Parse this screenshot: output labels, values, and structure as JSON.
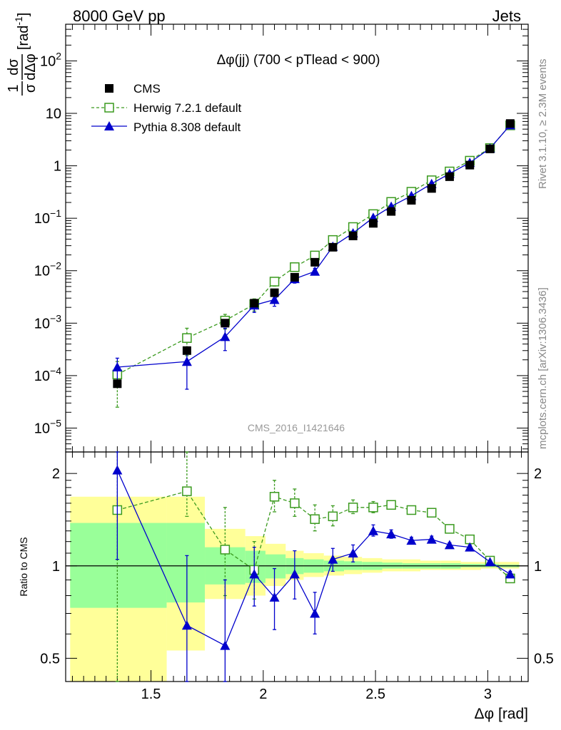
{
  "header": {
    "left": "8000 GeV pp",
    "right": "Jets"
  },
  "side_labels": {
    "rivet": "Rivet 3.1.10, ≥ 2.3M events",
    "mcplots": "mcplots.cern.ch [arXiv:1306.3436]"
  },
  "watermark": "CMS_2016_I1421646",
  "colors": {
    "cms": "#000000",
    "herwig": "#3a9a1e",
    "pythia": "#0000cc",
    "band_yellow": "#ffff99",
    "band_green": "#99ff99"
  },
  "chart_data": [
    {
      "type": "scatter",
      "panel": "main",
      "title": "Δφ(jj) (700 < pTlead <  900)",
      "ylabel": "1/σ dσ/dΔφ [rad⁻¹]",
      "ylabel_parts": {
        "num": "1",
        "den": "σ",
        "dnum": "dσ",
        "dden": "dΔφ",
        "unit": "[rad",
        "unit_sup": "-1",
        "unit_end": "]"
      },
      "yscale": "log",
      "ylim": [
        3.5e-06,
        500
      ],
      "xlim": [
        1.12,
        3.18
      ],
      "yticks": [
        {
          "v": 1e-05,
          "base": "10",
          "exp": "−5"
        },
        {
          "v": 0.0001,
          "base": "10",
          "exp": "−4"
        },
        {
          "v": 0.001,
          "base": "10",
          "exp": "−3"
        },
        {
          "v": 0.01,
          "base": "10",
          "exp": "−2"
        },
        {
          "v": 0.1,
          "base": "10",
          "exp": "−1"
        },
        {
          "v": 1,
          "base": "1",
          "exp": ""
        },
        {
          "v": 10,
          "base": "10",
          "exp": ""
        },
        {
          "v": 100,
          "base": "10",
          "exp": "2"
        }
      ],
      "legend_position": "top-left",
      "series": [
        {
          "name": "CMS",
          "marker": "square-filled",
          "x": [
            1.35,
            1.66,
            1.83,
            1.96,
            2.05,
            2.14,
            2.23,
            2.31,
            2.4,
            2.49,
            2.57,
            2.66,
            2.75,
            2.83,
            2.92,
            3.01,
            3.1
          ],
          "y": [
            7e-05,
            0.0003,
            0.001,
            0.0024,
            0.0038,
            0.0075,
            0.0145,
            0.028,
            0.046,
            0.08,
            0.135,
            0.22,
            0.37,
            0.62,
            1.03,
            2.1,
            6.4
          ],
          "yerr": [
            5e-06,
            1e-05,
            3e-05,
            7e-05,
            0.0001,
            0.0002,
            0.0003,
            0.0006,
            0.0009,
            0.0015,
            0.0025,
            0.004,
            0.006,
            0.01,
            0.015,
            0.03,
            0.08
          ]
        },
        {
          "name": "Herwig 7.2.1 default",
          "marker": "square-open",
          "line": "dashed",
          "x": [
            1.35,
            1.66,
            1.83,
            1.96,
            2.05,
            2.14,
            2.23,
            2.31,
            2.4,
            2.49,
            2.57,
            2.66,
            2.75,
            2.83,
            2.92,
            3.01,
            3.1
          ],
          "y": [
            0.000105,
            0.00052,
            0.00112,
            0.0023,
            0.0062,
            0.0117,
            0.0195,
            0.0385,
            0.068,
            0.12,
            0.205,
            0.32,
            0.53,
            0.78,
            1.25,
            2.18,
            5.9
          ],
          "yerr": [
            8e-05,
            0.00028,
            0.00035,
            0.0006,
            0.0011,
            0.0016,
            0.0024,
            0.004,
            0.006,
            0.009,
            0.013,
            0.018,
            0.025,
            0.035,
            0.05,
            0.08,
            0.15
          ]
        },
        {
          "name": "Pythia 8.308 default",
          "marker": "triangle-filled",
          "line": "solid",
          "x": [
            1.35,
            1.66,
            1.83,
            1.96,
            2.05,
            2.14,
            2.23,
            2.31,
            2.4,
            2.49,
            2.57,
            2.66,
            2.75,
            2.83,
            2.92,
            3.01,
            3.1
          ],
          "y": [
            0.000145,
            0.000185,
            0.00055,
            0.0022,
            0.0028,
            0.007,
            0.0097,
            0.029,
            0.052,
            0.103,
            0.168,
            0.268,
            0.455,
            0.71,
            1.15,
            2.15,
            6.0
          ],
          "yerr": [
            7e-05,
            0.00013,
            0.00025,
            0.0006,
            0.0007,
            0.0012,
            0.0014,
            0.003,
            0.004,
            0.006,
            0.008,
            0.011,
            0.016,
            0.022,
            0.035,
            0.06,
            0.12
          ]
        }
      ]
    },
    {
      "type": "scatter",
      "panel": "ratio",
      "ylabel": "Ratio to CMS",
      "xlabel": "Δφ [rad]",
      "yscale": "log",
      "ylim": [
        0.42,
        2.35
      ],
      "xlim": [
        1.12,
        3.18
      ],
      "xticks": [
        1.5,
        2,
        2.5,
        3
      ],
      "xtick_labels": [
        "1.5",
        "2",
        "2.5",
        "3"
      ],
      "yticks": [
        0.5,
        1,
        2
      ],
      "ytick_labels": [
        "0.5",
        "1",
        "2"
      ],
      "reference_line": 1,
      "bands": {
        "edges": [
          1.14,
          1.57,
          1.74,
          1.92,
          2.01,
          2.1,
          2.18,
          2.27,
          2.36,
          2.44,
          2.53,
          2.62,
          2.7,
          2.79,
          2.88,
          2.97,
          3.05,
          3.14
        ],
        "yellow_low": [
          0.38,
          0.53,
          0.78,
          0.8,
          0.86,
          0.9,
          0.92,
          0.93,
          0.94,
          0.95,
          0.96,
          0.96,
          0.97,
          0.97,
          0.97,
          0.98,
          0.98
        ],
        "yellow_high": [
          1.68,
          1.68,
          1.32,
          1.25,
          1.18,
          1.12,
          1.1,
          1.08,
          1.07,
          1.06,
          1.05,
          1.05,
          1.04,
          1.04,
          1.03,
          1.03,
          1.03
        ],
        "green_low": [
          0.73,
          0.76,
          0.87,
          0.88,
          0.91,
          0.94,
          0.95,
          0.96,
          0.97,
          0.97,
          0.98,
          0.98,
          0.98,
          0.98,
          0.99,
          0.99,
          0.99
        ],
        "green_high": [
          1.38,
          1.38,
          1.15,
          1.12,
          1.09,
          1.06,
          1.05,
          1.04,
          1.035,
          1.03,
          1.025,
          1.02,
          1.02,
          1.02,
          1.015,
          1.015,
          1.01
        ]
      },
      "series": [
        {
          "name": "Herwig 7.2.1 default",
          "marker": "square-open",
          "line": "dashed",
          "x": [
            1.35,
            1.66,
            1.83,
            1.96,
            2.05,
            2.14,
            2.23,
            2.31,
            2.4,
            2.49,
            2.57,
            2.66,
            2.75,
            2.83,
            2.92,
            3.01,
            3.1
          ],
          "y": [
            1.52,
            1.75,
            1.13,
            0.97,
            1.68,
            1.6,
            1.42,
            1.45,
            1.55,
            1.55,
            1.58,
            1.52,
            1.49,
            1.32,
            1.22,
            1.04,
            0.91
          ],
          "ylo": [
            0.38,
            1.45,
            0.8,
            0.78,
            1.5,
            1.45,
            1.3,
            1.35,
            1.48,
            1.49,
            1.54,
            1.49,
            1.46,
            1.3,
            1.2,
            1.03,
            0.9
          ],
          "yhi": [
            2.35,
            2.35,
            1.55,
            1.2,
            1.9,
            1.78,
            1.58,
            1.57,
            1.64,
            1.62,
            1.63,
            1.56,
            1.52,
            1.35,
            1.25,
            1.05,
            0.92
          ]
        },
        {
          "name": "Pythia 8.308 default",
          "marker": "triangle-filled",
          "line": "solid",
          "x": [
            1.35,
            1.66,
            1.83,
            1.96,
            2.05,
            2.14,
            2.23,
            2.31,
            2.4,
            2.49,
            2.57,
            2.66,
            2.75,
            2.83,
            2.92,
            3.01,
            3.1
          ],
          "y": [
            2.05,
            0.64,
            0.55,
            0.94,
            0.79,
            0.94,
            0.7,
            1.05,
            1.1,
            1.3,
            1.27,
            1.21,
            1.22,
            1.17,
            1.15,
            1.03,
            0.94
          ],
          "ylo": [
            1.05,
            0.42,
            0.42,
            0.74,
            0.62,
            0.78,
            0.6,
            0.96,
            1.03,
            1.25,
            1.23,
            1.18,
            1.2,
            1.15,
            1.13,
            1.02,
            0.93
          ],
          "yhi": [
            2.35,
            1.08,
            0.9,
            1.15,
            0.98,
            1.12,
            0.82,
            1.14,
            1.17,
            1.36,
            1.31,
            1.24,
            1.25,
            1.19,
            1.17,
            1.04,
            0.96
          ]
        }
      ]
    }
  ]
}
